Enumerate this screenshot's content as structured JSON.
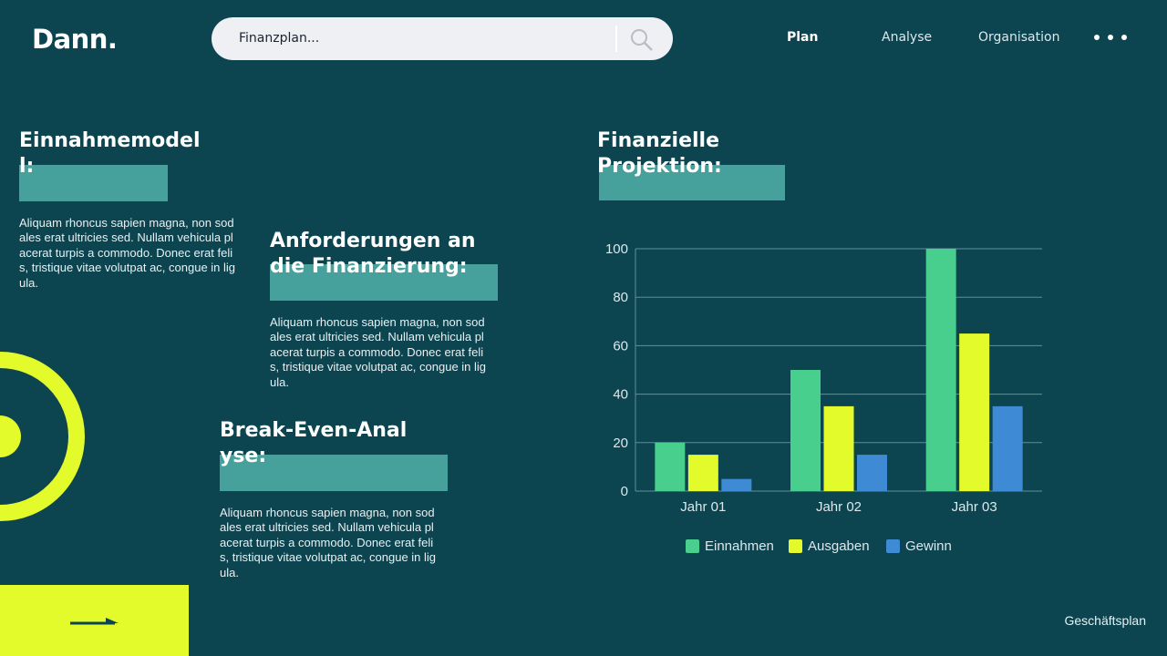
{
  "header": {
    "logo": "Dann.",
    "search_placeholder": "Finanzplan...",
    "nav": [
      "Plan",
      "Analyse",
      "Organisation"
    ]
  },
  "sections": [
    {
      "title": "Einnahmemodell:",
      "body": "Aliquam rhoncus sapien magna, non sodales erat ultricies sed. Nullam vehicula placerat turpis a commodo. Donec erat felis, tristique vitae volutpat ac, congue in ligula."
    },
    {
      "title": "Anforderungen an die Finanzierung:",
      "body": "Aliquam rhoncus sapien magna, non sodales erat ultricies sed. Nullam vehicula placerat turpis a commodo. Donec erat felis, tristique vitae volutpat ac, congue in ligula."
    },
    {
      "title": "Break-Even-Analyse:",
      "body": "Aliquam rhoncus sapien magna, non sodales erat ultricies sed. Nullam vehicula placerat turpis a commodo. Donec erat felis, tristique vitae volutpat ac, congue in ligula."
    }
  ],
  "chart_data": {
    "type": "bar",
    "title": "Finanzielle Projektion:",
    "categories": [
      "Jahr 01",
      "Jahr 02",
      "Jahr 03"
    ],
    "series": [
      {
        "name": "Einnahmen",
        "color": "#48cf8e",
        "values": [
          20,
          50,
          100
        ]
      },
      {
        "name": "Ausgaben",
        "color": "#e3fb2b",
        "values": [
          15,
          35,
          65
        ]
      },
      {
        "name": "Gewinn",
        "color": "#3f8ad4",
        "values": [
          5,
          15,
          35
        ]
      }
    ],
    "ylim": [
      0,
      100
    ],
    "yticks": [
      0,
      20,
      40,
      60,
      80,
      100
    ],
    "grid": true,
    "legend": "bottom"
  },
  "footer": {
    "label": "Geschäftsplan"
  }
}
